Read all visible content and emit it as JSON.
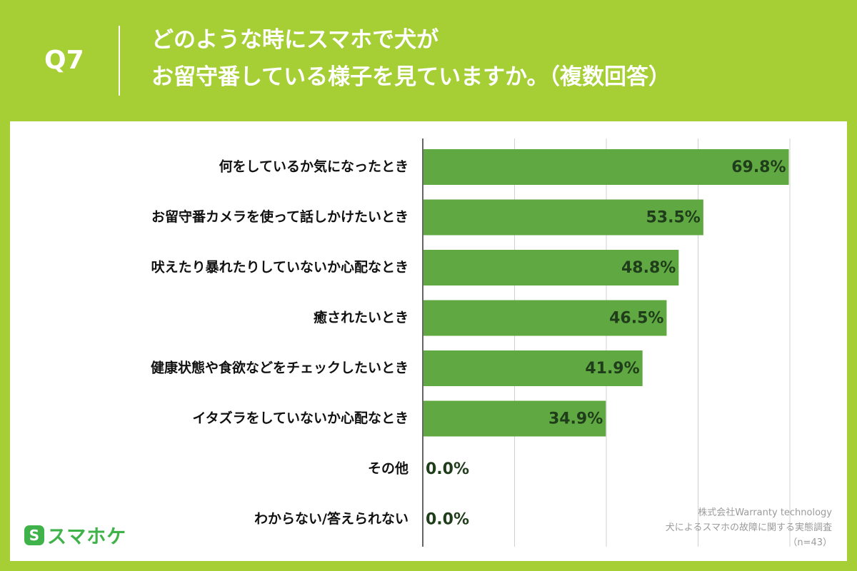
{
  "header": {
    "q_number": "Q7",
    "title_line1": "どのような時にスマホで犬が",
    "title_line2": "お留守番している様子を見ていますか。（複数回答）"
  },
  "logo": {
    "mark": "S",
    "text": "スマホケ"
  },
  "source": {
    "line1": "株式会社Warranty technology",
    "line2": "犬によるスマホの故障に関する実態調査",
    "line3": "（n=43）"
  },
  "colors": {
    "background": "#a6cf35",
    "bar": "#5fa842",
    "value_label": "#1f3d1a",
    "logo": "#3fb24a",
    "gridline": "#d0d0d0"
  },
  "chart_data": {
    "type": "bar",
    "orientation": "horizontal",
    "categories": [
      "何をしているか気になったとき",
      "お留守番カメラを使って話しかけたいとき",
      "吠えたり暴れたりしていないか心配なとき",
      "癒されたいとき",
      "健康状態や食欲などをチェックしたいとき",
      "イタズラをしていないか心配なとき",
      "その他",
      "わからない/答えられない"
    ],
    "values": [
      69.8,
      53.5,
      48.8,
      46.5,
      41.9,
      34.9,
      0.0,
      0.0
    ],
    "value_labels": [
      "69.8%",
      "53.5%",
      "48.8%",
      "46.5%",
      "41.9%",
      "34.9%",
      "0.0%",
      "0.0%"
    ],
    "xlim": [
      0,
      70
    ],
    "gridlines_at": [
      17.5,
      35,
      52.5,
      70
    ],
    "grid": true,
    "legend": "none"
  }
}
